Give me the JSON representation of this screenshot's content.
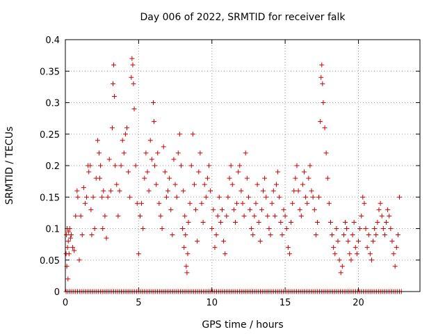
{
  "chart_data": {
    "type": "scatter",
    "title": "Day 006 of 2022, SRMTID for receiver falk",
    "xlabel": "GPS time / hours",
    "ylabel": "SRMTID / TECUs",
    "xlim": [
      0,
      24.2
    ],
    "ylim": [
      0,
      0.4
    ],
    "xticks": [
      0,
      5,
      10,
      15,
      20
    ],
    "xtick_labels": [
      "0",
      "5",
      "10",
      "15",
      "20"
    ],
    "yticks": [
      0,
      0.05,
      0.1,
      0.15,
      0.2,
      0.25,
      0.3,
      0.35,
      0.4
    ],
    "ytick_labels": [
      "0",
      "0.05",
      "0.1",
      "0.15",
      "0.2",
      "0.25",
      "0.3",
      "0.35",
      "0.4"
    ],
    "grid": true,
    "marker": "plus",
    "color": "#cc0000",
    "series": [
      {
        "points": [
          [
            0.05,
            0.06
          ],
          [
            0.08,
            0.09
          ],
          [
            0.1,
            0.04
          ],
          [
            0.12,
            0.1
          ],
          [
            0.15,
            0.07
          ],
          [
            0.18,
            0.02
          ],
          [
            0.2,
            0.08
          ],
          [
            0.22,
            0.095
          ],
          [
            0.25,
            0.06
          ],
          [
            0.3,
            0.1
          ],
          [
            0.35,
            0.085
          ],
          [
            0.4,
            0.09
          ],
          [
            0.5,
            0.07
          ],
          [
            0.6,
            0.065
          ],
          [
            0.7,
            0.12
          ],
          [
            0.8,
            0.16
          ],
          [
            0.85,
            0.15
          ],
          [
            0.95,
            0.05
          ],
          [
            1.05,
            0.12
          ],
          [
            1.15,
            0.09
          ],
          [
            1.25,
            0.165
          ],
          [
            1.35,
            0.14
          ],
          [
            1.45,
            0.15
          ],
          [
            1.55,
            0.2
          ],
          [
            1.6,
            0.19
          ],
          [
            1.7,
            0.2
          ],
          [
            1.75,
            0.13
          ],
          [
            1.8,
            0.09
          ],
          [
            1.9,
            0.15
          ],
          [
            2.0,
            0.1
          ],
          [
            2.1,
            0.18
          ],
          [
            2.2,
            0.24
          ],
          [
            2.3,
            0.22
          ],
          [
            2.35,
            0.18
          ],
          [
            2.4,
            0.2
          ],
          [
            2.5,
            0.15
          ],
          [
            2.55,
            0.1
          ],
          [
            2.6,
            0.16
          ],
          [
            2.7,
            0.12
          ],
          [
            2.8,
            0.085
          ],
          [
            2.9,
            0.15
          ],
          [
            3.0,
            0.21
          ],
          [
            3.1,
            0.16
          ],
          [
            3.2,
            0.26
          ],
          [
            3.25,
            0.33
          ],
          [
            3.3,
            0.36
          ],
          [
            3.35,
            0.31
          ],
          [
            3.4,
            0.2
          ],
          [
            3.5,
            0.17
          ],
          [
            3.6,
            0.12
          ],
          [
            3.7,
            0.16
          ],
          [
            3.8,
            0.2
          ],
          [
            3.9,
            0.24
          ],
          [
            4.0,
            0.22
          ],
          [
            4.1,
            0.25
          ],
          [
            4.2,
            0.26
          ],
          [
            4.3,
            0.19
          ],
          [
            4.4,
            0.15
          ],
          [
            4.5,
            0.34
          ],
          [
            4.55,
            0.37
          ],
          [
            4.6,
            0.36
          ],
          [
            4.65,
            0.33
          ],
          [
            4.7,
            0.29
          ],
          [
            4.8,
            0.2
          ],
          [
            4.9,
            0.14
          ],
          [
            5.0,
            0.06
          ],
          [
            5.1,
            0.12
          ],
          [
            5.2,
            0.14
          ],
          [
            5.3,
            0.1
          ],
          [
            5.4,
            0.18
          ],
          [
            5.5,
            0.22
          ],
          [
            5.6,
            0.19
          ],
          [
            5.7,
            0.16
          ],
          [
            5.8,
            0.24
          ],
          [
            5.9,
            0.21
          ],
          [
            6.0,
            0.3
          ],
          [
            6.05,
            0.27
          ],
          [
            6.1,
            0.2
          ],
          [
            6.2,
            0.17
          ],
          [
            6.3,
            0.22
          ],
          [
            6.4,
            0.14
          ],
          [
            6.5,
            0.12
          ],
          [
            6.6,
            0.1
          ],
          [
            6.7,
            0.23
          ],
          [
            6.8,
            0.19
          ],
          [
            6.9,
            0.15
          ],
          [
            7.0,
            0.16
          ],
          [
            7.1,
            0.18
          ],
          [
            7.2,
            0.13
          ],
          [
            7.3,
            0.09
          ],
          [
            7.4,
            0.21
          ],
          [
            7.5,
            0.17
          ],
          [
            7.6,
            0.15
          ],
          [
            7.7,
            0.22
          ],
          [
            7.8,
            0.25
          ],
          [
            7.9,
            0.2
          ],
          [
            8.0,
            0.1
          ],
          [
            8.05,
            0.16
          ],
          [
            8.1,
            0.07
          ],
          [
            8.15,
            0.12
          ],
          [
            8.2,
            0.09
          ],
          [
            8.25,
            0.04
          ],
          [
            8.3,
            0.03
          ],
          [
            8.35,
            0.06
          ],
          [
            8.4,
            0.11
          ],
          [
            8.5,
            0.14
          ],
          [
            8.6,
            0.2
          ],
          [
            8.7,
            0.25
          ],
          [
            8.8,
            0.17
          ],
          [
            8.9,
            0.13
          ],
          [
            9.0,
            0.08
          ],
          [
            9.1,
            0.19
          ],
          [
            9.2,
            0.22
          ],
          [
            9.3,
            0.14
          ],
          [
            9.4,
            0.11
          ],
          [
            9.5,
            0.17
          ],
          [
            9.6,
            0.15
          ],
          [
            9.7,
            0.18
          ],
          [
            9.8,
            0.2
          ],
          [
            9.9,
            0.16
          ],
          [
            10.0,
            0.1
          ],
          [
            10.1,
            0.13
          ],
          [
            10.2,
            0.07
          ],
          [
            10.3,
            0.09
          ],
          [
            10.4,
            0.12
          ],
          [
            10.5,
            0.15
          ],
          [
            10.6,
            0.11
          ],
          [
            10.7,
            0.13
          ],
          [
            10.8,
            0.08
          ],
          [
            10.9,
            0.06
          ],
          [
            11.0,
            0.12
          ],
          [
            11.1,
            0.15
          ],
          [
            11.2,
            0.18
          ],
          [
            11.3,
            0.2
          ],
          [
            11.4,
            0.17
          ],
          [
            11.5,
            0.13
          ],
          [
            11.6,
            0.11
          ],
          [
            11.7,
            0.14
          ],
          [
            11.8,
            0.19
          ],
          [
            11.9,
            0.2
          ],
          [
            12.0,
            0.16
          ],
          [
            12.1,
            0.14
          ],
          [
            12.2,
            0.12
          ],
          [
            12.3,
            0.22
          ],
          [
            12.4,
            0.18
          ],
          [
            12.5,
            0.15
          ],
          [
            12.6,
            0.13
          ],
          [
            12.7,
            0.1
          ],
          [
            12.8,
            0.09
          ],
          [
            12.9,
            0.12
          ],
          [
            13.0,
            0.14
          ],
          [
            13.1,
            0.17
          ],
          [
            13.2,
            0.11
          ],
          [
            13.3,
            0.08
          ],
          [
            13.4,
            0.13
          ],
          [
            13.5,
            0.16
          ],
          [
            13.6,
            0.18
          ],
          [
            13.7,
            0.15
          ],
          [
            13.8,
            0.12
          ],
          [
            13.9,
            0.1
          ],
          [
            14.0,
            0.09
          ],
          [
            14.1,
            0.14
          ],
          [
            14.2,
            0.16
          ],
          [
            14.3,
            0.12
          ],
          [
            14.4,
            0.17
          ],
          [
            14.5,
            0.19
          ],
          [
            14.6,
            0.15
          ],
          [
            14.7,
            0.11
          ],
          [
            14.8,
            0.09
          ],
          [
            14.9,
            0.13
          ],
          [
            15.0,
            0.12
          ],
          [
            15.1,
            0.1
          ],
          [
            15.2,
            0.07
          ],
          [
            15.3,
            0.06
          ],
          [
            15.4,
            0.11
          ],
          [
            15.5,
            0.14
          ],
          [
            15.6,
            0.16
          ],
          [
            15.7,
            0.18
          ],
          [
            15.8,
            0.2
          ],
          [
            15.9,
            0.16
          ],
          [
            16.0,
            0.13
          ],
          [
            16.1,
            0.12
          ],
          [
            16.2,
            0.17
          ],
          [
            16.3,
            0.19
          ],
          [
            16.4,
            0.15
          ],
          [
            16.5,
            0.14
          ],
          [
            16.6,
            0.18
          ],
          [
            16.7,
            0.2
          ],
          [
            16.8,
            0.16
          ],
          [
            16.9,
            0.15
          ],
          [
            17.0,
            0.13
          ],
          [
            17.1,
            0.09
          ],
          [
            17.2,
            0.11
          ],
          [
            17.3,
            0.15
          ],
          [
            17.4,
            0.27
          ],
          [
            17.45,
            0.34
          ],
          [
            17.5,
            0.36
          ],
          [
            17.55,
            0.33
          ],
          [
            17.6,
            0.3
          ],
          [
            17.7,
            0.26
          ],
          [
            17.8,
            0.22
          ],
          [
            17.9,
            0.18
          ],
          [
            18.0,
            0.14
          ],
          [
            18.1,
            0.11
          ],
          [
            18.2,
            0.09
          ],
          [
            18.3,
            0.07
          ],
          [
            18.4,
            0.06
          ],
          [
            18.5,
            0.1
          ],
          [
            18.6,
            0.08
          ],
          [
            18.7,
            0.05
          ],
          [
            18.8,
            0.03
          ],
          [
            18.9,
            0.04
          ],
          [
            19.0,
            0.09
          ],
          [
            19.1,
            0.11
          ],
          [
            19.2,
            0.1
          ],
          [
            19.3,
            0.08
          ],
          [
            19.4,
            0.06
          ],
          [
            19.5,
            0.05
          ],
          [
            19.6,
            0.09
          ],
          [
            19.7,
            0.11
          ],
          [
            19.8,
            0.07
          ],
          [
            19.9,
            0.06
          ],
          [
            20.0,
            0.08
          ],
          [
            20.1,
            0.1
          ],
          [
            20.2,
            0.12
          ],
          [
            20.3,
            0.15
          ],
          [
            20.4,
            0.14
          ],
          [
            20.5,
            0.1
          ],
          [
            20.6,
            0.07
          ],
          [
            20.7,
            0.09
          ],
          [
            20.8,
            0.06
          ],
          [
            20.9,
            0.05
          ],
          [
            21.0,
            0.08
          ],
          [
            21.1,
            0.1
          ],
          [
            21.2,
            0.09
          ],
          [
            21.3,
            0.11
          ],
          [
            21.4,
            0.13
          ],
          [
            21.5,
            0.14
          ],
          [
            21.6,
            0.12
          ],
          [
            21.7,
            0.1
          ],
          [
            21.8,
            0.09
          ],
          [
            21.9,
            0.11
          ],
          [
            22.0,
            0.13
          ],
          [
            22.1,
            0.12
          ],
          [
            22.2,
            0.1
          ],
          [
            22.3,
            0.08
          ],
          [
            22.4,
            0.06
          ],
          [
            22.5,
            0.04
          ],
          [
            22.6,
            0.07
          ],
          [
            22.7,
            0.09
          ],
          [
            22.8,
            0.15
          ]
        ],
        "zero_line_x": [
          0.05,
          23.0
        ],
        "zero_value": 0
      }
    ]
  }
}
